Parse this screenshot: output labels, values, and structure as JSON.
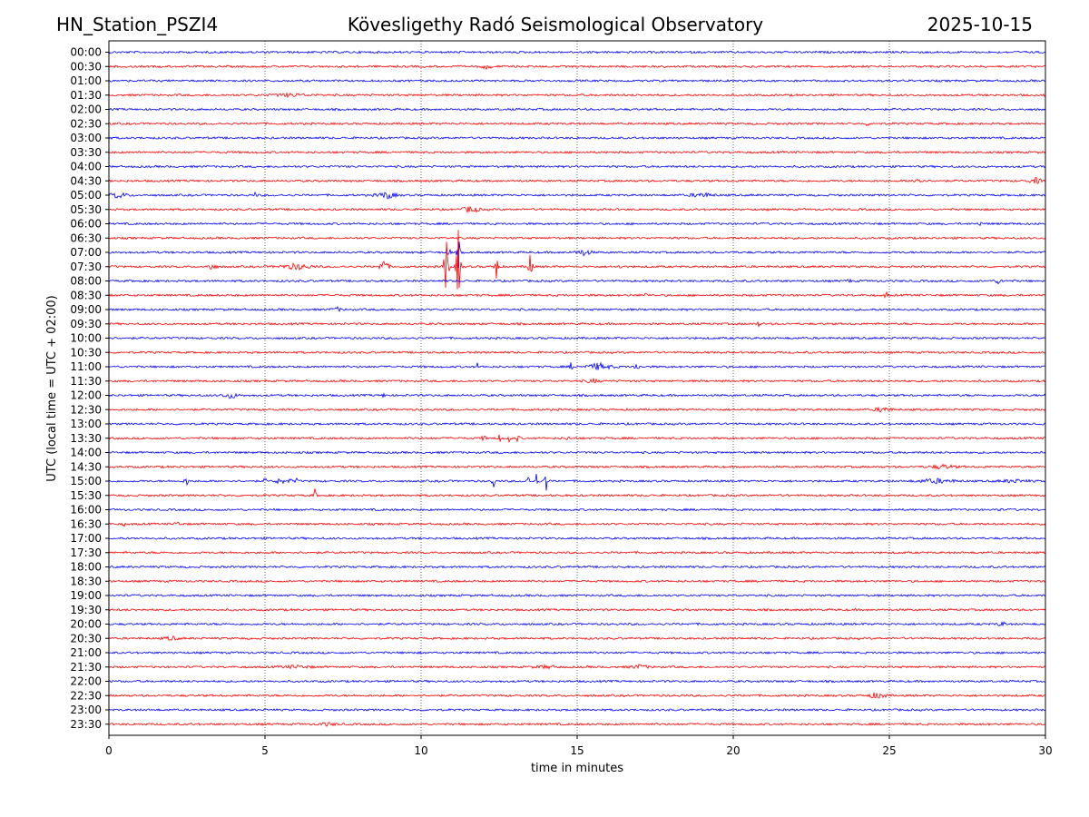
{
  "header": {
    "station": "HN_Station_PSZI4",
    "observatory": "Kövesligethy Radó Seismological Observatory",
    "date": "2025-10-15"
  },
  "chart_data": {
    "type": "line",
    "title": "Kövesligethy Radó Seismological Observatory",
    "xlabel": "time in minutes",
    "ylabel": "UTC (local time = UTC + 02:00)",
    "xlim": [
      0,
      30
    ],
    "x_ticks": [
      0,
      5,
      10,
      15,
      20,
      25,
      30
    ],
    "grid": "vertical dotted lines at every 5 minutes",
    "trace_colors": [
      "#0000ff",
      "#ff0000"
    ],
    "rows": [
      "00:00",
      "00:30",
      "01:00",
      "01:30",
      "02:00",
      "02:30",
      "03:00",
      "03:30",
      "04:00",
      "04:30",
      "05:00",
      "05:30",
      "06:00",
      "06:30",
      "07:00",
      "07:30",
      "08:00",
      "08:30",
      "09:00",
      "09:30",
      "10:00",
      "10:30",
      "11:00",
      "11:30",
      "12:00",
      "12:30",
      "13:00",
      "13:30",
      "14:00",
      "14:30",
      "15:00",
      "15:30",
      "16:00",
      "16:30",
      "17:00",
      "17:30",
      "18:00",
      "18:30",
      "19:00",
      "19:30",
      "20:00",
      "20:30",
      "21:00",
      "21:30",
      "22:00",
      "22:30",
      "23:00",
      "23:30"
    ],
    "events": [
      {
        "row": "00:30",
        "minute": 12.1,
        "amplitude": 0.3,
        "width_min": 0.4
      },
      {
        "row": "01:30",
        "minute": 5.8,
        "amplitude": 0.2,
        "width_min": 1.2
      },
      {
        "row": "02:30",
        "minute": 24.3,
        "amplitude": 0.3,
        "width_min": 0.1
      },
      {
        "row": "04:30",
        "minute": 25.9,
        "amplitude": 0.5,
        "width_min": 0.3
      },
      {
        "row": "04:30",
        "minute": 29.7,
        "amplitude": 0.4,
        "width_min": 0.4
      },
      {
        "row": "05:00",
        "minute": 0.3,
        "amplitude": 0.4,
        "width_min": 0.6
      },
      {
        "row": "05:00",
        "minute": 4.7,
        "amplitude": 0.5,
        "width_min": 0.1
      },
      {
        "row": "05:00",
        "minute": 8.9,
        "amplitude": 0.5,
        "width_min": 0.6
      },
      {
        "row": "05:00",
        "minute": 19.0,
        "amplitude": 0.3,
        "width_min": 0.8
      },
      {
        "row": "05:30",
        "minute": 11.6,
        "amplitude": 0.5,
        "width_min": 0.5
      },
      {
        "row": "06:00",
        "minute": 27.9,
        "amplitude": 0.4,
        "width_min": 0.1
      },
      {
        "row": "07:00",
        "minute": 10.9,
        "amplitude": 1.0,
        "width_min": 0.1
      },
      {
        "row": "07:00",
        "minute": 11.2,
        "amplitude": 2.5,
        "width_min": 0.1
      },
      {
        "row": "07:00",
        "minute": 15.2,
        "amplitude": 0.4,
        "width_min": 0.5
      },
      {
        "row": "07:30",
        "minute": 3.3,
        "amplitude": 0.5,
        "width_min": 0.3
      },
      {
        "row": "07:30",
        "minute": 6.0,
        "amplitude": 0.4,
        "width_min": 1.0
      },
      {
        "row": "07:30",
        "minute": 8.8,
        "amplitude": 1.0,
        "width_min": 0.3
      },
      {
        "row": "07:30",
        "minute": 10.8,
        "amplitude": 6.0,
        "width_min": 0.15
      },
      {
        "row": "07:30",
        "minute": 11.2,
        "amplitude": 6.0,
        "width_min": 0.15
      },
      {
        "row": "07:30",
        "minute": 12.4,
        "amplitude": 5.5,
        "width_min": 0.1
      },
      {
        "row": "07:30",
        "minute": 13.5,
        "amplitude": 5.5,
        "width_min": 0.1
      },
      {
        "row": "07:30",
        "minute": 16.4,
        "amplitude": 0.8,
        "width_min": 0.1
      },
      {
        "row": "08:00",
        "minute": 23.7,
        "amplitude": 0.5,
        "width_min": 0.1
      },
      {
        "row": "08:00",
        "minute": 28.5,
        "amplitude": 0.3,
        "width_min": 0.3
      },
      {
        "row": "08:30",
        "minute": 17.2,
        "amplitude": 0.4,
        "width_min": 0.1
      },
      {
        "row": "08:30",
        "minute": 24.9,
        "amplitude": 0.6,
        "width_min": 0.1
      },
      {
        "row": "09:00",
        "minute": 7.3,
        "amplitude": 0.3,
        "width_min": 0.3
      },
      {
        "row": "09:30",
        "minute": 20.8,
        "amplitude": 0.4,
        "width_min": 0.1
      },
      {
        "row": "11:00",
        "minute": 11.8,
        "amplitude": 0.5,
        "width_min": 0.1
      },
      {
        "row": "11:00",
        "minute": 14.8,
        "amplitude": 0.6,
        "width_min": 0.1
      },
      {
        "row": "11:00",
        "minute": 15.7,
        "amplitude": 0.5,
        "width_min": 0.8
      },
      {
        "row": "11:00",
        "minute": 16.9,
        "amplitude": 0.5,
        "width_min": 0.2
      },
      {
        "row": "11:30",
        "minute": 15.5,
        "amplitude": 0.3,
        "width_min": 0.4
      },
      {
        "row": "12:00",
        "minute": 3.9,
        "amplitude": 0.4,
        "width_min": 0.5
      },
      {
        "row": "12:00",
        "minute": 8.8,
        "amplitude": 0.3,
        "width_min": 0.1
      },
      {
        "row": "12:30",
        "minute": 24.8,
        "amplitude": 0.4,
        "width_min": 0.5
      },
      {
        "row": "13:30",
        "minute": 12.0,
        "amplitude": 0.8,
        "width_min": 0.1
      },
      {
        "row": "13:30",
        "minute": 12.5,
        "amplitude": 0.9,
        "width_min": 0.1
      },
      {
        "row": "13:30",
        "minute": 12.8,
        "amplitude": 0.8,
        "width_min": 0.1
      },
      {
        "row": "13:30",
        "minute": 13.1,
        "amplitude": 0.6,
        "width_min": 0.1
      },
      {
        "row": "13:30",
        "minute": 14.7,
        "amplitude": 0.4,
        "width_min": 0.1
      },
      {
        "row": "14:30",
        "minute": 26.7,
        "amplitude": 0.3,
        "width_min": 0.8
      },
      {
        "row": "15:00",
        "minute": 2.5,
        "amplitude": 0.5,
        "width_min": 0.2
      },
      {
        "row": "15:00",
        "minute": 5.0,
        "amplitude": 0.4,
        "width_min": 0.1
      },
      {
        "row": "15:00",
        "minute": 5.4,
        "amplitude": 0.6,
        "width_min": 0.1
      },
      {
        "row": "15:00",
        "minute": 5.6,
        "amplitude": 0.5,
        "width_min": 0.1
      },
      {
        "row": "15:00",
        "minute": 5.8,
        "amplitude": 0.5,
        "width_min": 0.1
      },
      {
        "row": "15:00",
        "minute": 6.0,
        "amplitude": 0.4,
        "width_min": 0.1
      },
      {
        "row": "15:00",
        "minute": 12.3,
        "amplitude": 1.8,
        "width_min": 0.1
      },
      {
        "row": "15:00",
        "minute": 13.4,
        "amplitude": 2.0,
        "width_min": 0.1
      },
      {
        "row": "15:00",
        "minute": 13.7,
        "amplitude": 1.4,
        "width_min": 0.1
      },
      {
        "row": "15:00",
        "minute": 14.0,
        "amplitude": 2.2,
        "width_min": 0.1
      },
      {
        "row": "15:00",
        "minute": 26.5,
        "amplitude": 0.3,
        "width_min": 1.2
      },
      {
        "row": "15:00",
        "minute": 29.0,
        "amplitude": 0.2,
        "width_min": 1.0
      },
      {
        "row": "15:30",
        "minute": 6.6,
        "amplitude": 0.9,
        "width_min": 0.1
      },
      {
        "row": "16:00",
        "minute": 28.5,
        "amplitude": 0.3,
        "width_min": 0.1
      },
      {
        "row": "16:30",
        "minute": 0.5,
        "amplitude": 0.4,
        "width_min": 0.1
      },
      {
        "row": "16:30",
        "minute": 2.2,
        "amplitude": 0.3,
        "width_min": 0.2
      },
      {
        "row": "20:00",
        "minute": 28.6,
        "amplitude": 0.3,
        "width_min": 0.3
      },
      {
        "row": "20:30",
        "minute": 2.0,
        "amplitude": 0.3,
        "width_min": 0.4
      },
      {
        "row": "21:30",
        "minute": 6.0,
        "amplitude": 0.2,
        "width_min": 1.0
      },
      {
        "row": "21:30",
        "minute": 14.0,
        "amplitude": 0.2,
        "width_min": 0.8
      },
      {
        "row": "21:30",
        "minute": 17.0,
        "amplitude": 0.3,
        "width_min": 0.6
      },
      {
        "row": "22:30",
        "minute": 24.6,
        "amplitude": 0.4,
        "width_min": 0.6
      },
      {
        "row": "23:30",
        "minute": 7.0,
        "amplitude": 0.2,
        "width_min": 0.6
      }
    ]
  }
}
